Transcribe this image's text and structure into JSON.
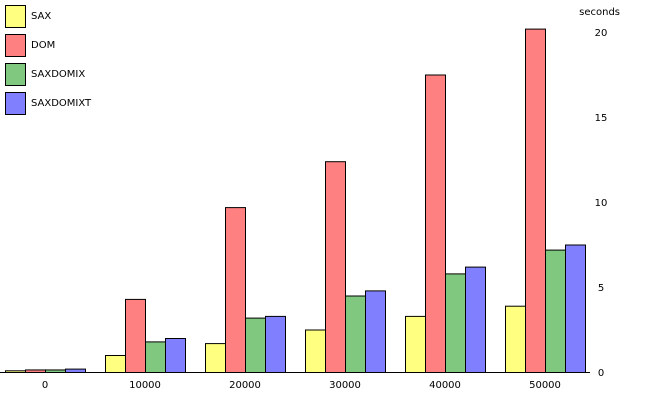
{
  "chart_data": {
    "type": "bar",
    "title": "",
    "xlabel": "",
    "ylabel": "seconds",
    "ylim": [
      0,
      22
    ],
    "y_ticks": [
      0,
      5,
      10,
      15,
      20
    ],
    "y_axis_side": "right",
    "grid": false,
    "legend_placement": "top-left",
    "categories": [
      "0",
      "10000",
      "20000",
      "30000",
      "40000",
      "50000"
    ],
    "series": [
      {
        "name": "SAX",
        "color": "#ffff80",
        "values": [
          0.1,
          1.0,
          1.7,
          2.5,
          3.3,
          3.9
        ]
      },
      {
        "name": "DOM",
        "color": "#ff8080",
        "values": [
          0.15,
          4.3,
          9.7,
          12.4,
          17.5,
          20.2
        ]
      },
      {
        "name": "SAXDOMIX",
        "color": "#80c880",
        "values": [
          0.15,
          1.8,
          3.2,
          4.5,
          5.8,
          7.2
        ]
      },
      {
        "name": "SAXDOMIXT",
        "color": "#8080ff",
        "values": [
          0.2,
          2.0,
          3.3,
          4.8,
          6.2,
          7.5
        ]
      }
    ]
  }
}
